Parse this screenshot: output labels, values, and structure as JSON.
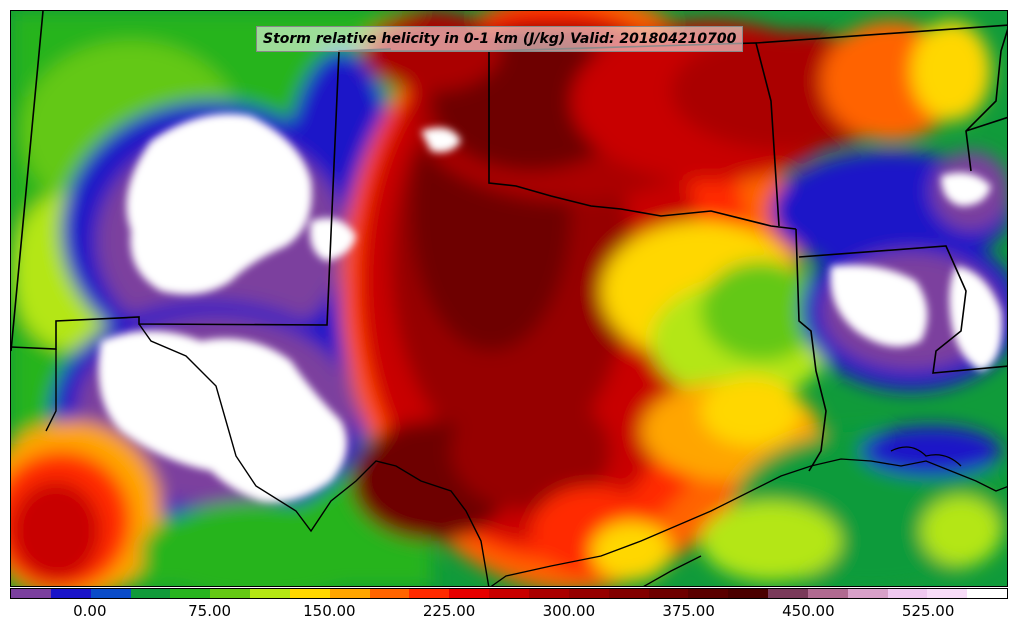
{
  "title": "Storm relative helicity in 0-1 km (J/kg) Valid: 201804210700",
  "colorbar": {
    "min": -50,
    "max": 575,
    "interval": 25,
    "colors": [
      "#7b3f9e",
      "#1a14c8",
      "#0a4cc8",
      "#109b3a",
      "#28b41e",
      "#64c814",
      "#b4e614",
      "#ffd700",
      "#ffa500",
      "#ff6400",
      "#ff2a00",
      "#e60000",
      "#c80000",
      "#aa0000",
      "#960000",
      "#820000",
      "#6e0000",
      "#5a0000",
      "#4a0000",
      "#7a3a5a",
      "#b06a90",
      "#d8a0c8",
      "#f0c8f0",
      "#f8dcf8",
      "#ffffff"
    ],
    "tick_values": [
      0,
      75,
      150,
      225,
      300,
      375,
      450,
      525
    ],
    "tick_labels": [
      "0.00",
      "75.00",
      "150.00",
      "225.00",
      "300.00",
      "375.00",
      "450.00",
      "525.00"
    ]
  },
  "map": {
    "field": "storm-relative-helicity-0-1km",
    "projection": "regional-south-central-us",
    "boundaries": [
      "state-borders",
      "coastline",
      "international-border"
    ]
  }
}
